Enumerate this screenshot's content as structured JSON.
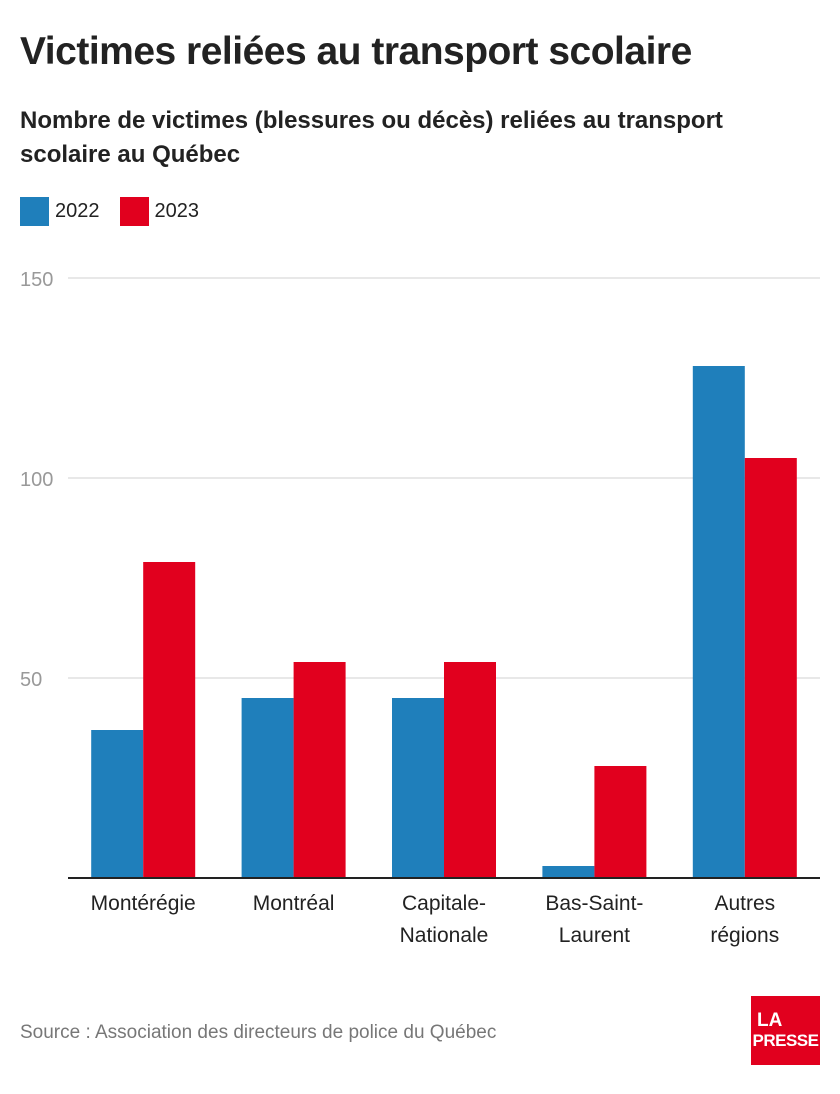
{
  "header": {
    "title": "Victimes reliées au transport scolaire",
    "subtitle": "Nombre de victimes (blessures ou décès) reliées au transport scolaire au Québec"
  },
  "colors": {
    "series_2022": "#1f7fbb",
    "series_2023": "#e1001e",
    "grid": "#e0e0e0",
    "axis": "#222222",
    "tick": "#999999"
  },
  "chart_data": {
    "type": "bar",
    "title": "Victimes reliées au transport scolaire",
    "subtitle": "Nombre de victimes (blessures ou décès) reliées au transport scolaire au Québec",
    "categories": [
      [
        "Montérégie"
      ],
      [
        "Montréal"
      ],
      [
        "Capitale-",
        "Nationale"
      ],
      [
        "Bas-Saint-",
        "Laurent"
      ],
      [
        "Autres",
        "régions"
      ]
    ],
    "series": [
      {
        "name": "2022",
        "values": [
          37,
          45,
          45,
          3,
          128
        ]
      },
      {
        "name": "2023",
        "values": [
          79,
          54,
          54,
          28,
          105
        ]
      }
    ],
    "ylim": [
      0,
      150
    ],
    "yticks": [
      50,
      100,
      150
    ],
    "grid": true,
    "legend_position": "top-left",
    "xlabel": "",
    "ylabel": ""
  },
  "footer": {
    "source": "Source : Association des directeurs de police du Québec",
    "logo_line1": "LA",
    "logo_line2": "PRESSE"
  }
}
